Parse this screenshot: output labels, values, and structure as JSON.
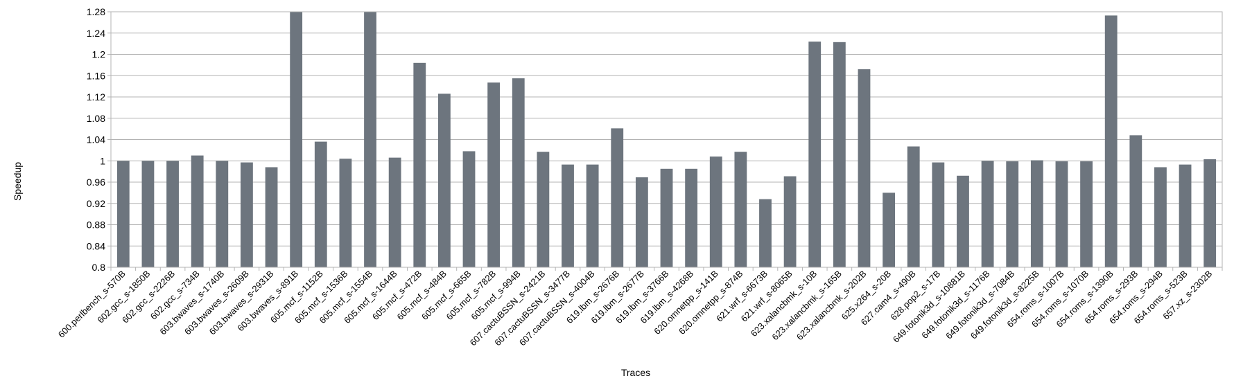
{
  "chart_data": {
    "type": "bar",
    "title": "",
    "xlabel": "Traces",
    "ylabel": "Speedup",
    "ylim": [
      0.8,
      1.28
    ],
    "yticks": [
      "0.8",
      "0.84",
      "0.88",
      "0.92",
      "0.96",
      "1",
      "1.04",
      "1.08",
      "1.12",
      "1.16",
      "1.2",
      "1.24",
      "1.28"
    ],
    "grid": true,
    "legend": "none",
    "bar_color": "#6d757e",
    "grid_color": "#b3b3b3",
    "categories": [
      "600.perlbench_s-570B",
      "602.gcc_s-1850B",
      "602.gcc_s-2226B",
      "602.gcc_s-734B",
      "603.bwaves_s-1740B",
      "603.bwaves_s-2609B",
      "603.bwaves_s-2931B",
      "603.bwaves_s-891B",
      "605.mcf_s-1152B",
      "605.mcf_s-1536B",
      "605.mcf_s-1554B",
      "605.mcf_s-1644B",
      "605.mcf_s-472B",
      "605.mcf_s-484B",
      "605.mcf_s-665B",
      "605.mcf_s-782B",
      "605.mcf_s-994B",
      "607.cactuBSSN_s-2421B",
      "607.cactuBSSN_s-3477B",
      "607.cactuBSSN_s-4004B",
      "619.lbm_s-2676B",
      "619.lbm_s-2677B",
      "619.lbm_s-3766B",
      "619.lbm_s-4268B",
      "620.omnetpp_s-141B",
      "620.omnetpp_s-874B",
      "621.wrf_s-6673B",
      "621.wrf_s-8065B",
      "623.xalancbmk_s-10B",
      "623.xalancbmk_s-165B",
      "623.xalancbmk_s-202B",
      "625.x264_s-20B",
      "627.cam4_s-490B",
      "628.pop2_s-17B",
      "649.fotonik3d_s-10881B",
      "649.fotonik3d_s-1176B",
      "649.fotonik3d_s-7084B",
      "649.fotonik3d_s-8225B",
      "654.roms_s-1007B",
      "654.roms_s-1070B",
      "654.roms_s-1390B",
      "654.roms_s-293B",
      "654.roms_s-294B",
      "654.roms_s-523B",
      "657.xz_s-2302B"
    ],
    "values": [
      1.0,
      1.0,
      1.0,
      1.01,
      1.0,
      0.997,
      0.988,
      1.28,
      1.036,
      1.004,
      1.28,
      1.006,
      1.184,
      1.126,
      1.018,
      1.147,
      1.155,
      1.017,
      0.993,
      0.993,
      1.061,
      0.969,
      0.985,
      0.985,
      1.008,
      1.017,
      0.928,
      0.971,
      1.224,
      1.223,
      1.172,
      0.94,
      1.027,
      0.997,
      0.972,
      1.0,
      0.999,
      1.001,
      0.999,
      0.999,
      1.273,
      1.048,
      0.988,
      0.993,
      1.003
    ]
  }
}
